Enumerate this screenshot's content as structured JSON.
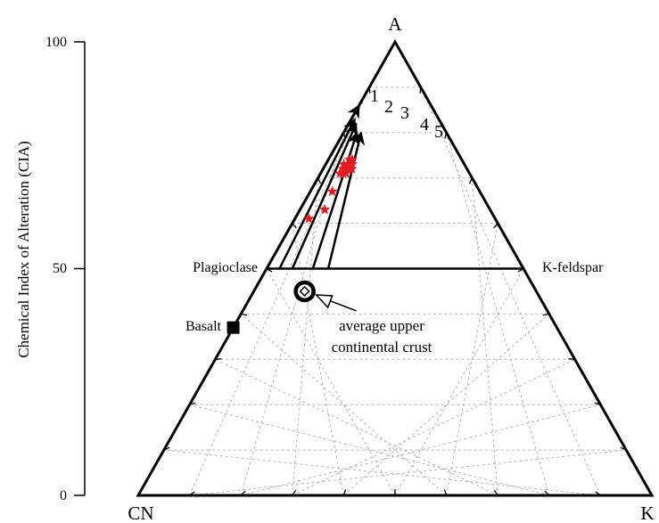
{
  "axis": {
    "label": "Chemical Index of Alteration (CIA)",
    "ticks": [
      "100",
      "50",
      "0"
    ]
  },
  "vertices": {
    "top": "A",
    "bottom_left": "CN",
    "bottom_right": "K"
  },
  "labels": {
    "plagioclase": "Plagioclase",
    "k_feldspar": "K-feldspar",
    "basalt": "Basalt",
    "ucc_line1": "average upper",
    "ucc_line2": "continental crust"
  },
  "trend_labels": [
    "1",
    "2",
    "3",
    "4",
    "5"
  ],
  "colors": {
    "frame": "#000000",
    "grid": "#b4b4b4",
    "sample_star": "#e8191e"
  },
  "chart_data": {
    "type": "scatter",
    "diagram": "ternary A-CN-K",
    "ylabel": "Chemical Index of Alteration (CIA)",
    "ylim": [
      0,
      100
    ],
    "y_ticks": [
      0,
      50,
      100
    ],
    "grid": true,
    "reference_points": [
      {
        "name": "Plagioclase",
        "CIA": 50,
        "K_fraction": 0.0
      },
      {
        "name": "K-feldspar",
        "CIA": 50,
        "K_fraction": 0.5
      },
      {
        "name": "Basalt",
        "CIA": 37,
        "K_fraction": 0.0
      },
      {
        "name": "average upper continental crust",
        "CIA": 45,
        "K_fraction": 0.18
      }
    ],
    "trends": [
      {
        "name": "1",
        "from": {
          "CIA": 50,
          "K_fraction": 0.0
        },
        "to": {
          "CIA": 86,
          "K_fraction": 0.0
        }
      },
      {
        "name": "2",
        "from": {
          "CIA": 50,
          "K_fraction": 0.05
        },
        "to": {
          "CIA": 83,
          "K_fraction": 0.04
        }
      },
      {
        "name": "3",
        "from": {
          "CIA": 50,
          "K_fraction": 0.1
        },
        "to": {
          "CIA": 82,
          "K_fraction": 0.08
        }
      },
      {
        "name": "4",
        "from": {
          "CIA": 50,
          "K_fraction": 0.18
        },
        "to": {
          "CIA": 80,
          "K_fraction": 0.13
        }
      },
      {
        "name": "5",
        "from": {
          "CIA": 50,
          "K_fraction": 0.24
        },
        "to": {
          "CIA": 80,
          "K_fraction": 0.17
        }
      }
    ],
    "samples": [
      {
        "CIA": 74,
        "K_fraction": 0.18
      },
      {
        "CIA": 73,
        "K_fraction": 0.17
      },
      {
        "CIA": 72,
        "K_fraction": 0.16
      },
      {
        "CIA": 71,
        "K_fraction": 0.15
      },
      {
        "CIA": 72,
        "K_fraction": 0.14
      },
      {
        "CIA": 73,
        "K_fraction": 0.13
      },
      {
        "CIA": 71,
        "K_fraction": 0.13
      },
      {
        "CIA": 73,
        "K_fraction": 0.19
      },
      {
        "CIA": 72,
        "K_fraction": 0.18
      },
      {
        "CIA": 74,
        "K_fraction": 0.16
      },
      {
        "CIA": 71,
        "K_fraction": 0.17
      },
      {
        "CIA": 72,
        "K_fraction": 0.2
      },
      {
        "CIA": 67,
        "K_fraction": 0.13
      },
      {
        "CIA": 63,
        "K_fraction": 0.13
      },
      {
        "CIA": 61,
        "K_fraction": 0.07
      }
    ]
  }
}
